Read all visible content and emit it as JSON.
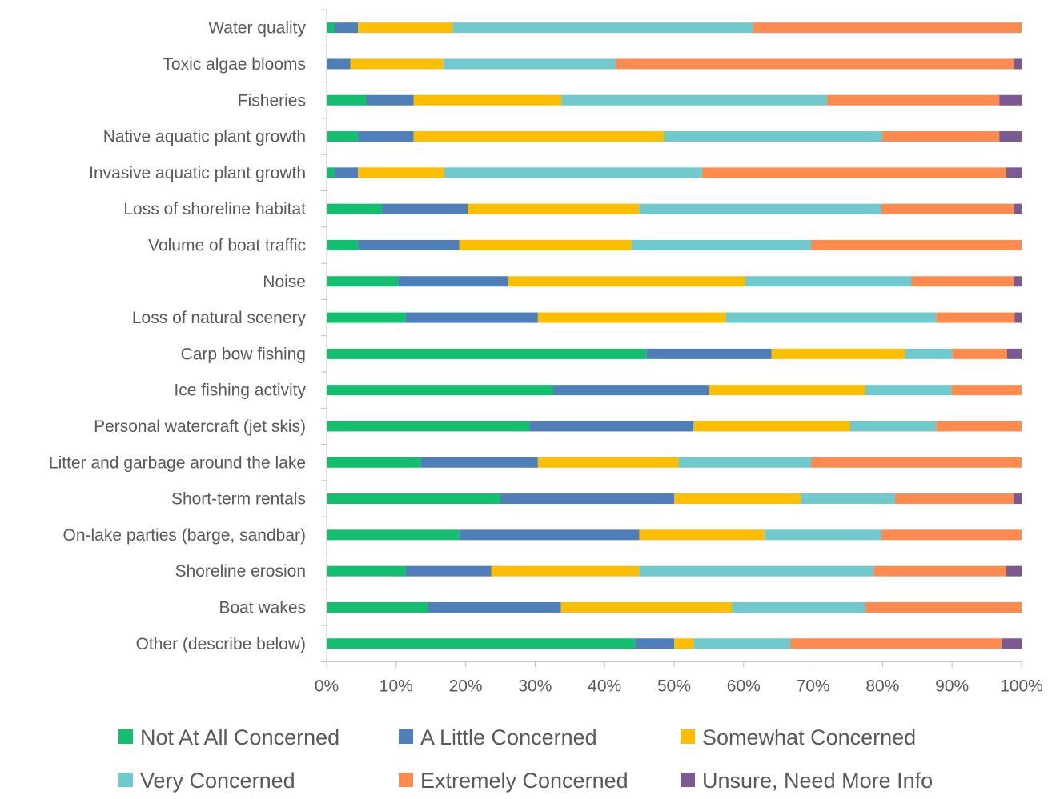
{
  "chart_data": {
    "type": "bar",
    "orientation": "horizontal",
    "stacked": "percent",
    "xlim": [
      0,
      100
    ],
    "x_ticks": [
      "0%",
      "10%",
      "20%",
      "30%",
      "40%",
      "50%",
      "60%",
      "70%",
      "80%",
      "90%",
      "100%"
    ],
    "grid": false,
    "legend_position": "bottom",
    "categories": [
      "Water quality",
      "Toxic algae blooms",
      "Fisheries",
      "Native aquatic plant growth",
      "Invasive aquatic plant growth",
      "Loss of shoreline habitat",
      "Volume of boat traffic",
      "Noise",
      "Loss of natural scenery",
      "Carp bow fishing",
      "Ice fishing activity",
      "Personal watercraft (jet skis)",
      "Litter and garbage around the lake",
      "Short-term rentals",
      "On-lake parties (barge, sandbar)",
      "Shoreline erosion",
      "Boat wakes",
      "Other (describe below)"
    ],
    "series": [
      {
        "name": "Not At All Concerned",
        "color": "#13be6e",
        "values": [
          1.1,
          0,
          5.7,
          4.5,
          1.1,
          8.0,
          4.5,
          10.3,
          11.4,
          46.0,
          32.6,
          29.2,
          13.5,
          25.0,
          19.1,
          11.4,
          14.6,
          44.4
        ]
      },
      {
        "name": "A Little Concerned",
        "color": "#4f7fb9",
        "values": [
          3.4,
          3.4,
          6.8,
          8.0,
          3.4,
          12.3,
          14.6,
          15.8,
          19.0,
          18.0,
          22.4,
          23.6,
          16.9,
          25.0,
          25.9,
          12.3,
          19.1,
          5.6
        ]
      },
      {
        "name": "Somewhat Concerned",
        "color": "#fbbe00",
        "values": [
          13.6,
          13.4,
          21.3,
          36.0,
          12.4,
          24.7,
          24.8,
          34.1,
          27.0,
          19.2,
          22.5,
          22.5,
          20.2,
          18.2,
          18.0,
          21.3,
          24.6,
          2.8
        ]
      },
      {
        "name": "Very Concerned",
        "color": "#70c9cc",
        "values": [
          43.2,
          24.8,
          38.2,
          31.4,
          37.1,
          34.8,
          25.8,
          23.9,
          30.3,
          6.8,
          12.4,
          12.4,
          19.1,
          13.6,
          16.8,
          33.7,
          19.2,
          13.9
        ]
      },
      {
        "name": "Extremely Concerned",
        "color": "#fd8b4f",
        "values": [
          38.7,
          57.3,
          24.8,
          16.9,
          43.8,
          19.1,
          30.3,
          14.8,
          11.3,
          7.9,
          10.1,
          12.3,
          30.3,
          17.1,
          20.2,
          19.1,
          22.5,
          30.5
        ]
      },
      {
        "name": "Unsure, Need More Info",
        "color": "#7a5a91",
        "values": [
          0,
          1.1,
          3.2,
          3.2,
          2.2,
          1.1,
          0,
          1.1,
          1.0,
          2.1,
          0,
          0,
          0,
          1.1,
          0,
          2.2,
          0,
          2.8
        ]
      }
    ]
  }
}
